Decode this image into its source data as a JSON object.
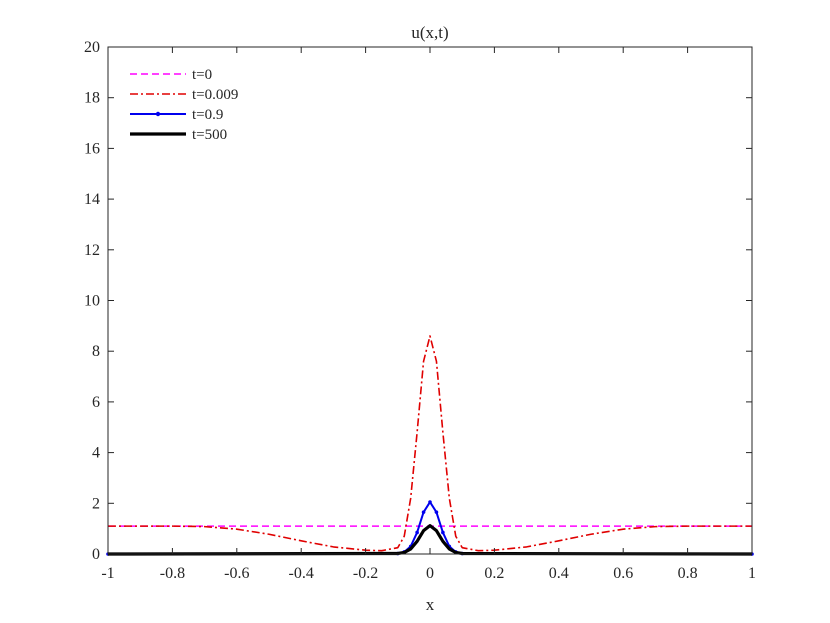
{
  "chart_data": {
    "type": "line",
    "title": "u(x,t)",
    "xlabel": "x",
    "ylabel": "",
    "xlim": [
      -1,
      1
    ],
    "ylim": [
      0,
      20
    ],
    "xticks": [
      -1,
      -0.8,
      -0.6,
      -0.4,
      -0.2,
      0,
      0.2,
      0.4,
      0.6,
      0.8,
      1
    ],
    "xtick_labels": [
      "-1",
      "-0.8",
      "-0.6",
      "-0.4",
      "-0.2",
      "0",
      "0.2",
      "0.4",
      "0.6",
      "0.8",
      "1"
    ],
    "yticks": [
      0,
      2,
      4,
      6,
      8,
      10,
      12,
      14,
      16,
      18,
      20
    ],
    "ytick_labels": [
      "0",
      "2",
      "4",
      "6",
      "8",
      "10",
      "12",
      "14",
      "16",
      "18",
      "20"
    ],
    "grid": false,
    "legend_position": "top-left",
    "series": [
      {
        "name": "t=0",
        "color": "#ff00ff",
        "style": "dashed",
        "x": [
          -1,
          1
        ],
        "y": [
          1.1,
          1.1
        ]
      },
      {
        "name": "t=0.009",
        "color": "#e00000",
        "style": "dashdot",
        "x": [
          -1,
          -0.8,
          -0.7,
          -0.6,
          -0.5,
          -0.4,
          -0.3,
          -0.2,
          -0.15,
          -0.1,
          -0.08,
          -0.06,
          -0.04,
          -0.02,
          0,
          0.02,
          0.04,
          0.06,
          0.08,
          0.1,
          0.15,
          0.2,
          0.3,
          0.4,
          0.5,
          0.6,
          0.7,
          0.8,
          1
        ],
        "y": [
          1.1,
          1.1,
          1.08,
          0.98,
          0.78,
          0.52,
          0.28,
          0.15,
          0.13,
          0.25,
          0.7,
          2.2,
          4.8,
          7.6,
          8.6,
          7.6,
          4.8,
          2.2,
          0.7,
          0.25,
          0.13,
          0.15,
          0.28,
          0.52,
          0.78,
          0.98,
          1.08,
          1.1,
          1.1
        ]
      },
      {
        "name": "t=0.9",
        "color": "#0000ee",
        "style": "solid-dot",
        "x": [
          -1,
          -0.1,
          -0.08,
          -0.06,
          -0.04,
          -0.02,
          0,
          0.02,
          0.04,
          0.06,
          0.08,
          0.1,
          1
        ],
        "y": [
          0,
          0.02,
          0.08,
          0.3,
          0.85,
          1.65,
          2.05,
          1.65,
          0.85,
          0.3,
          0.08,
          0.02,
          0
        ]
      },
      {
        "name": "t=500",
        "color": "#000000",
        "style": "thick",
        "x": [
          -1,
          -0.1,
          -0.08,
          -0.06,
          -0.04,
          -0.02,
          0,
          0.02,
          0.04,
          0.06,
          0.08,
          0.1,
          1
        ],
        "y": [
          0,
          0.02,
          0.06,
          0.2,
          0.5,
          0.92,
          1.12,
          0.92,
          0.5,
          0.2,
          0.06,
          0.02,
          0
        ]
      }
    ]
  }
}
